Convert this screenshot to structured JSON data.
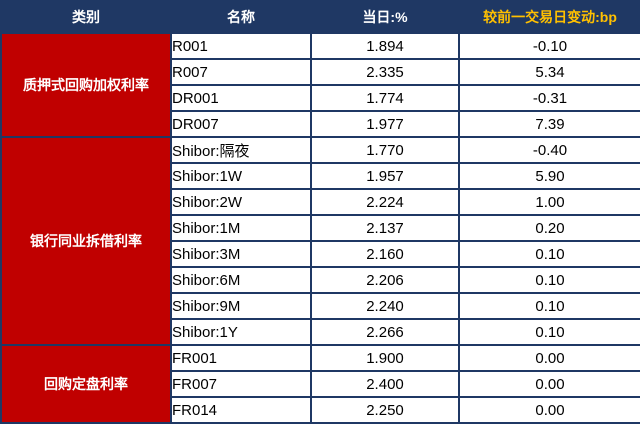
{
  "chart_data": {
    "type": "table",
    "headers": [
      "类别",
      "名称",
      "当日:%",
      "较前一交易日变动:bp"
    ],
    "groups": [
      {
        "category": "质押式回购加权利率",
        "rows": [
          {
            "name": "R001",
            "value": "1.894",
            "change": "-0.10"
          },
          {
            "name": "R007",
            "value": "2.335",
            "change": "5.34"
          },
          {
            "name": "DR001",
            "value": "1.774",
            "change": "-0.31"
          },
          {
            "name": "DR007",
            "value": "1.977",
            "change": "7.39"
          }
        ]
      },
      {
        "category": "银行同业拆借利率",
        "rows": [
          {
            "name": "Shibor:隔夜",
            "value": "1.770",
            "change": "-0.40"
          },
          {
            "name": "Shibor:1W",
            "value": "1.957",
            "change": "5.90"
          },
          {
            "name": "Shibor:2W",
            "value": "2.224",
            "change": "1.00"
          },
          {
            "name": "Shibor:1M",
            "value": "2.137",
            "change": "0.20"
          },
          {
            "name": "Shibor:3M",
            "value": "2.160",
            "change": "0.10"
          },
          {
            "name": "Shibor:6M",
            "value": "2.206",
            "change": "0.10"
          },
          {
            "name": "Shibor:9M",
            "value": "2.240",
            "change": "0.10"
          },
          {
            "name": "Shibor:1Y",
            "value": "2.266",
            "change": "0.10"
          }
        ]
      },
      {
        "category": "回购定盘利率",
        "rows": [
          {
            "name": "FR001",
            "value": "1.900",
            "change": "0.00"
          },
          {
            "name": "FR007",
            "value": "2.400",
            "change": "0.00"
          },
          {
            "name": "FR014",
            "value": "2.250",
            "change": "0.00"
          }
        ]
      }
    ],
    "colors": {
      "header_bg": "#1f3864",
      "header_text": "#ffffff",
      "change_header_text": "#ffc000",
      "category_bg": "#c00000",
      "category_text": "#ffffff",
      "border": "#1f3864",
      "cell_bg": "#ffffff",
      "cell_text": "#000000"
    }
  }
}
